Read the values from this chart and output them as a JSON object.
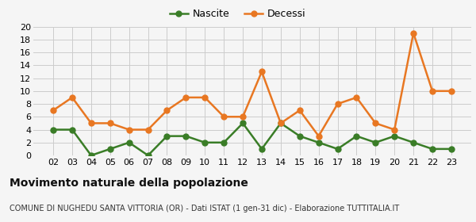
{
  "years": [
    "02",
    "03",
    "04",
    "05",
    "06",
    "07",
    "08",
    "09",
    "10",
    "11",
    "12",
    "13",
    "14",
    "15",
    "16",
    "17",
    "18",
    "19",
    "20",
    "21",
    "22",
    "23"
  ],
  "nascite": [
    4,
    4,
    0,
    1,
    2,
    0,
    3,
    3,
    2,
    2,
    5,
    1,
    5,
    3,
    2,
    1,
    3,
    2,
    3,
    2,
    1,
    1
  ],
  "decessi": [
    7,
    9,
    5,
    5,
    4,
    4,
    7,
    9,
    9,
    6,
    6,
    13,
    5,
    7,
    3,
    8,
    9,
    5,
    4,
    19,
    10,
    10
  ],
  "nascite_color": "#3a7d27",
  "decessi_color": "#e87722",
  "background_color": "#f5f5f5",
  "grid_color": "#cccccc",
  "ylim": [
    0,
    20
  ],
  "yticks": [
    0,
    2,
    4,
    6,
    8,
    10,
    12,
    14,
    16,
    18,
    20
  ],
  "title": "Movimento naturale della popolazione",
  "subtitle": "COMUNE DI NUGHEDU SANTA VITTORIA (OR) - Dati ISTAT (1 gen-31 dic) - Elaborazione TUTTITALIA.IT",
  "legend_nascite": "Nascite",
  "legend_decessi": "Decessi",
  "marker_size": 5,
  "line_width": 1.8,
  "title_fontsize": 10,
  "subtitle_fontsize": 7,
  "tick_fontsize": 8,
  "legend_fontsize": 9
}
